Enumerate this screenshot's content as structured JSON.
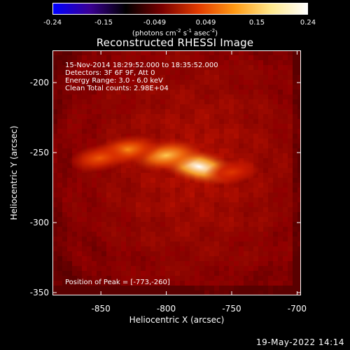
{
  "colorbar": {
    "ticks": [
      "-0.24",
      "-0.15",
      "-0.049",
      "0.049",
      "0.15",
      "0.24"
    ],
    "unit_prefix": "(photons cm",
    "unit_exp1": "-2",
    "unit_mid": " s",
    "unit_exp2": "-1",
    "unit_mid2": " asec",
    "unit_exp3": "-2",
    "unit_suffix": ")",
    "colors": [
      "#0000ff",
      "#3a0094",
      "#000000",
      "#7a0000",
      "#e23b00",
      "#ff9a14",
      "#ffe88c",
      "#ffffff"
    ]
  },
  "title": "Reconstructed RHESSI Image",
  "info": {
    "line1": "15-Nov-2014 18:29:52.000 to 18:35:52.000",
    "line2": "Detectors: 3F 6F 9F, Att 0",
    "line3": "Energy Range: 3.0 - 6.0 keV",
    "line4": "Clean     Total counts: 2.98E+04"
  },
  "peak_label": "Position of Peak = [-773,-260]",
  "footer": {
    "date": "19-May-2022 14:14"
  },
  "chart_data": {
    "type": "heatmap",
    "title": "Reconstructed RHESSI Image",
    "xlabel": "Heliocentric X (arcsec)",
    "ylabel": "Heliocentric Y (arcsec)",
    "xlim": [
      -887,
      -697
    ],
    "ylim": [
      -352,
      -177
    ],
    "x_ticks": [
      -850,
      -800,
      -750,
      -700
    ],
    "x_tick_labels": [
      "-850",
      "-800",
      "-750",
      "-700"
    ],
    "y_ticks": [
      -200,
      -250,
      -300,
      -350
    ],
    "y_tick_labels": [
      "-200",
      "-250",
      "-300",
      "-350"
    ],
    "colorbar_range": [
      -0.24,
      0.24
    ],
    "peak_position": [
      -773,
      -260
    ],
    "sources": [
      {
        "x": -775,
        "y": -260,
        "peak": 0.24
      },
      {
        "x": -800,
        "y": -252,
        "peak": 0.19
      },
      {
        "x": -830,
        "y": -248,
        "peak": 0.16
      },
      {
        "x": -851,
        "y": -254,
        "peak": 0.13
      },
      {
        "x": -750,
        "y": -264,
        "peak": 0.1
      }
    ]
  }
}
